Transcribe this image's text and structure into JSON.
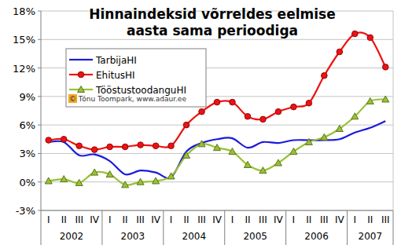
{
  "chart_data": {
    "type": "line",
    "title": [
      "Hinnaindeksid võrreldes eelmise",
      "aasta sama perioodiga"
    ],
    "annotation": "© Tõnu Toompark, www.adaur.ee",
    "categories": [
      "I",
      "II",
      "III",
      "IV",
      "I",
      "II",
      "III",
      "IV",
      "I",
      "II",
      "III",
      "IV",
      "I",
      "II",
      "III",
      "IV",
      "I",
      "II",
      "III",
      "IV",
      "I",
      "II",
      "III"
    ],
    "category_groups": [
      {
        "label": "2002",
        "size": 4
      },
      {
        "label": "2003",
        "size": 4
      },
      {
        "label": "2004",
        "size": 4
      },
      {
        "label": "2005",
        "size": 4
      },
      {
        "label": "2006",
        "size": 4
      },
      {
        "label": "2007",
        "size": 3
      }
    ],
    "series": [
      {
        "name": "TarbijaHI",
        "color": "#1a1adc",
        "marker": "none",
        "line_style": "smooth",
        "values": [
          4.2,
          4.2,
          2.8,
          2.9,
          2.2,
          0.8,
          1.2,
          1.0,
          0.5,
          3.2,
          4.1,
          4.5,
          4.6,
          3.6,
          4.2,
          4.1,
          4.4,
          4.4,
          4.4,
          4.5,
          5.2,
          5.7,
          6.4
        ]
      },
      {
        "name": "EhitusHI",
        "color": "#ee1111",
        "marker": "circle",
        "line_style": "smooth",
        "values": [
          4.4,
          4.5,
          3.8,
          3.4,
          3.7,
          3.7,
          3.9,
          3.8,
          3.8,
          6.0,
          7.4,
          8.4,
          8.4,
          6.9,
          6.6,
          7.4,
          7.9,
          8.3,
          11.2,
          13.7,
          15.6,
          15.2,
          12.1
        ]
      },
      {
        "name": "TööstustoodanguHI",
        "color": "#99c134",
        "marker": "triangle",
        "line_style": "smooth",
        "values": [
          0.1,
          0.3,
          -0.1,
          1.0,
          0.8,
          -0.3,
          0.0,
          0.1,
          0.6,
          2.8,
          4.0,
          3.6,
          3.2,
          1.8,
          1.2,
          2.0,
          3.2,
          4.2,
          4.7,
          5.6,
          6.9,
          8.5,
          8.7
        ]
      }
    ],
    "ylim": [
      -3,
      18
    ],
    "yticks": [
      {
        "value": -3,
        "label": "-3%"
      },
      {
        "value": 0,
        "label": "0%"
      },
      {
        "value": 3,
        "label": "3%"
      },
      {
        "value": 6,
        "label": "6%"
      },
      {
        "value": 9,
        "label": "9%"
      },
      {
        "value": 12,
        "label": "12%"
      },
      {
        "value": 15,
        "label": "15%"
      },
      {
        "value": 18,
        "label": "18%"
      }
    ],
    "grid": true,
    "legend": "upper left"
  }
}
